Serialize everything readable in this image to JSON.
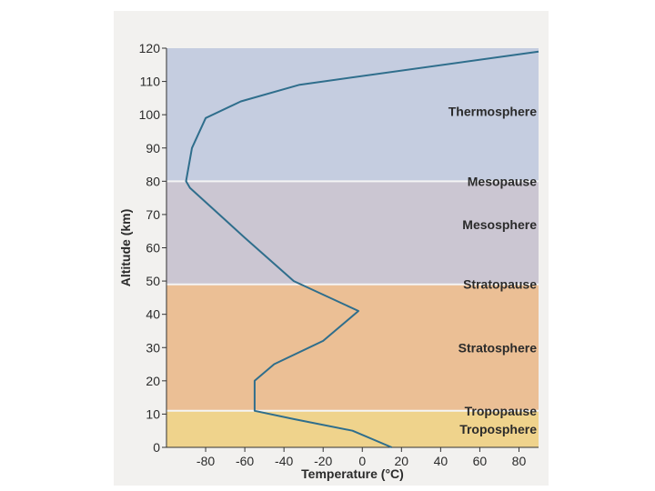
{
  "chart_data": {
    "type": "line",
    "xlabel": "Temperature (°C)",
    "ylabel": "Altitude (km)",
    "xlim": [
      -100,
      90
    ],
    "ylim": [
      0,
      120
    ],
    "x_ticks": [
      -80,
      -60,
      -40,
      -20,
      0,
      20,
      40,
      60,
      80
    ],
    "y_ticks": [
      0,
      10,
      20,
      30,
      40,
      50,
      60,
      70,
      80,
      90,
      100,
      110,
      120
    ],
    "grid": false,
    "colors": {
      "thermosphere": "#c5cde0",
      "mesosphere": "#cbc6d2",
      "stratosphere": "#ebbf95",
      "troposphere": "#efd38c",
      "line": "#2f6e8c",
      "separator": "#f4f4f4"
    },
    "bands": [
      {
        "name": "Thermosphere",
        "from": 80,
        "to": 120
      },
      {
        "name": "Mesosphere",
        "from": 49,
        "to": 80
      },
      {
        "name": "Stratosphere",
        "from": 11,
        "to": 49
      },
      {
        "name": "Troposphere",
        "from": 0,
        "to": 11
      }
    ],
    "annotations": [
      {
        "text": "Thermosphere",
        "y": 101
      },
      {
        "text": "Mesopause",
        "y": 80
      },
      {
        "text": "Mesosphere",
        "y": 67
      },
      {
        "text": "Stratopause",
        "y": 49
      },
      {
        "text": "Stratosphere",
        "y": 30
      },
      {
        "text": "Tropopause",
        "y": 11
      },
      {
        "text": "Troposphere",
        "y": 5.5
      }
    ],
    "series": [
      {
        "x": [
          15,
          -5,
          -35,
          -55,
          -55,
          -45,
          -20,
          -2,
          -35,
          -60,
          -88,
          -90,
          -87,
          -80,
          -62,
          -32,
          90
        ],
        "y": [
          0,
          5,
          8.5,
          11,
          20,
          25,
          32,
          41,
          50,
          63,
          78,
          80,
          90,
          99,
          104,
          109,
          119
        ]
      }
    ]
  }
}
